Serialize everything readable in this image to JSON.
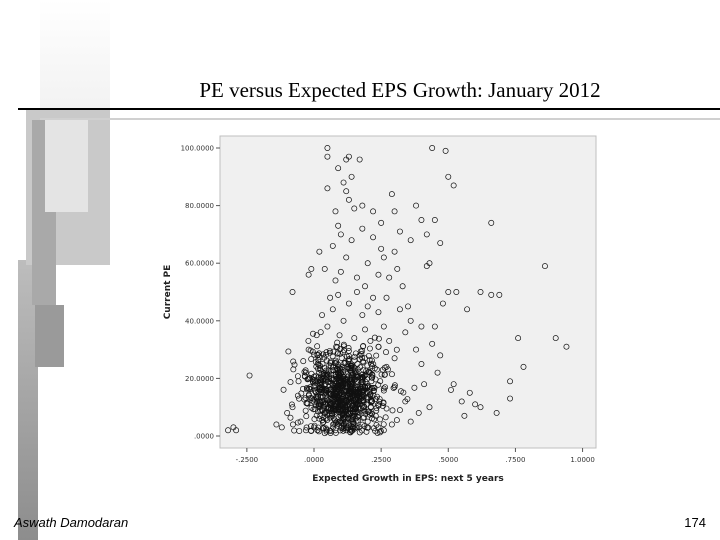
{
  "slide": {
    "title": "PE versus Expected EPS Growth: January 2012",
    "author": "Aswath Damodaran",
    "page_number": "174"
  },
  "chart_data": {
    "type": "scatter",
    "title": "PE versus Expected EPS Growth: January 2012",
    "xlabel": "Expected Growth in EPS: next 5 years",
    "ylabel": "Current PE",
    "xlim": [
      -0.35,
      1.05
    ],
    "ylim": [
      0,
      100
    ],
    "x_ticks": [
      -0.25,
      0,
      0.25,
      0.5,
      0.75,
      1.0
    ],
    "x_tick_labels": [
      "-.2500",
      ".0000",
      ".2500",
      ".5000",
      ".7500",
      "1.0000"
    ],
    "y_ticks": [
      0,
      20,
      40,
      60,
      80,
      100
    ],
    "y_tick_labels": [
      ".0000",
      "20.0000",
      "40.0000",
      "60.0000",
      "80.0000",
      "100.0000"
    ],
    "grid": false,
    "marker": "open-circle",
    "colors": {
      "plot_background": "#f0f0f0",
      "marker": "#111111"
    },
    "points": [
      [
        -0.32,
        2
      ],
      [
        -0.3,
        3
      ],
      [
        -0.29,
        2
      ],
      [
        -0.24,
        21
      ],
      [
        -0.08,
        50
      ],
      [
        -0.03,
        22
      ],
      [
        -0.02,
        56
      ],
      [
        0.05,
        100
      ],
      [
        0.05,
        97
      ],
      [
        0.12,
        96
      ],
      [
        0.13,
        97
      ],
      [
        0.17,
        96
      ],
      [
        0.14,
        90
      ],
      [
        0.12,
        85
      ],
      [
        0.05,
        86
      ],
      [
        0.08,
        78
      ],
      [
        0.15,
        79
      ],
      [
        0.18,
        80
      ],
      [
        0.22,
        78
      ],
      [
        0.25,
        74
      ],
      [
        0.3,
        78
      ],
      [
        0.38,
        80
      ],
      [
        0.4,
        75
      ],
      [
        0.45,
        75
      ],
      [
        0.44,
        100
      ],
      [
        0.49,
        99
      ],
      [
        0.5,
        90
      ],
      [
        0.52,
        87
      ],
      [
        0.42,
        70
      ],
      [
        0.47,
        67
      ],
      [
        0.43,
        60
      ],
      [
        0.42,
        59
      ],
      [
        0.25,
        65
      ],
      [
        0.2,
        60
      ],
      [
        0.16,
        55
      ],
      [
        0.1,
        57
      ],
      [
        0.04,
        58
      ],
      [
        0.02,
        64
      ],
      [
        0.07,
        66
      ],
      [
        -0.01,
        58
      ],
      [
        0.28,
        55
      ],
      [
        0.33,
        52
      ],
      [
        0.35,
        45
      ],
      [
        0.36,
        40
      ],
      [
        0.4,
        38
      ],
      [
        0.45,
        38
      ],
      [
        0.48,
        46
      ],
      [
        0.5,
        50
      ],
      [
        0.53,
        50
      ],
      [
        0.57,
        44
      ],
      [
        0.62,
        50
      ],
      [
        0.66,
        49
      ],
      [
        0.69,
        49
      ],
      [
        0.66,
        74
      ],
      [
        0.86,
        59
      ],
      [
        0.9,
        34
      ],
      [
        0.94,
        31
      ],
      [
        0.76,
        34
      ],
      [
        0.78,
        24
      ],
      [
        0.73,
        19
      ],
      [
        0.73,
        13
      ],
      [
        0.68,
        8
      ],
      [
        0.62,
        10
      ],
      [
        0.55,
        12
      ],
      [
        0.52,
        18
      ],
      [
        0.58,
        15
      ],
      [
        0.56,
        7
      ],
      [
        0.51,
        16
      ],
      [
        0.6,
        11
      ],
      [
        0.46,
        22
      ],
      [
        0.47,
        28
      ],
      [
        0.44,
        32
      ],
      [
        0.4,
        25
      ],
      [
        0.38,
        30
      ],
      [
        0.41,
        18
      ],
      [
        0.43,
        10
      ],
      [
        0.39,
        8
      ],
      [
        0.36,
        5
      ],
      [
        0.34,
        12
      ],
      [
        0.3,
        27
      ],
      [
        0.28,
        33
      ],
      [
        0.26,
        38
      ],
      [
        0.24,
        43
      ],
      [
        0.22,
        48
      ],
      [
        0.2,
        45
      ],
      [
        0.18,
        42
      ],
      [
        0.19,
        37
      ],
      [
        0.21,
        33
      ],
      [
        0.24,
        31
      ],
      [
        0.27,
        24
      ],
      [
        0.3,
        17
      ],
      [
        0.32,
        9
      ],
      [
        0.29,
        4
      ],
      [
        0.26,
        2
      ],
      [
        0.23,
        7
      ],
      [
        0.21,
        14
      ],
      [
        0.17,
        28
      ],
      [
        0.15,
        34
      ],
      [
        0.13,
        46
      ],
      [
        0.11,
        40
      ],
      [
        0.09,
        49
      ],
      [
        0.07,
        44
      ],
      [
        0.05,
        38
      ],
      [
        0.03,
        42
      ],
      [
        0.01,
        35
      ],
      [
        -0.02,
        30
      ],
      [
        -0.04,
        26
      ],
      [
        -0.06,
        14
      ],
      [
        -0.08,
        10
      ],
      [
        -0.1,
        8
      ],
      [
        -0.12,
        3
      ],
      [
        -0.14,
        4
      ],
      [
        -0.05,
        5
      ],
      [
        -0.03,
        2
      ],
      [
        0.0,
        3
      ],
      [
        0.02,
        6
      ],
      [
        0.04,
        1
      ],
      [
        0.08,
        2
      ],
      [
        0.12,
        2
      ],
      [
        0.16,
        3
      ],
      [
        0.2,
        5
      ],
      [
        0.24,
        3
      ],
      [
        0.1,
        70
      ],
      [
        0.12,
        62
      ],
      [
        0.14,
        68
      ],
      [
        0.09,
        73
      ],
      [
        0.18,
        72
      ],
      [
        0.22,
        69
      ],
      [
        0.26,
        62
      ],
      [
        0.31,
        58
      ],
      [
        0.24,
        56
      ],
      [
        0.27,
        48
      ],
      [
        0.32,
        44
      ],
      [
        0.34,
        36
      ],
      [
        0.16,
        50
      ],
      [
        0.19,
        52
      ],
      [
        0.08,
        54
      ],
      [
        0.06,
        48
      ],
      [
        0.3,
        64
      ],
      [
        0.36,
        68
      ],
      [
        0.32,
        71
      ],
      [
        0.11,
        88
      ],
      [
        0.13,
        82
      ],
      [
        0.29,
        84
      ],
      [
        0.09,
        93
      ]
    ],
    "dense_cluster": {
      "x_range": [
        -0.08,
        0.3
      ],
      "y_range": [
        2,
        40
      ],
      "center": [
        0.11,
        15
      ]
    }
  }
}
